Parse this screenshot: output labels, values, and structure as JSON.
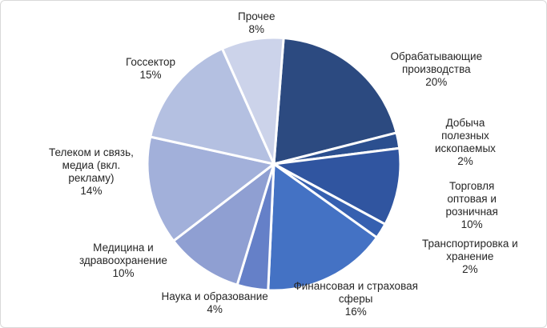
{
  "chart_data": {
    "type": "pie",
    "title": "",
    "start_angle_deg": 4.4,
    "slices": [
      {
        "label": "Обрабатывающие производства",
        "lines": [
          "Обрабатывающие",
          "производства"
        ],
        "value": 20,
        "value_label": "20%",
        "color": "#2c4a80"
      },
      {
        "label": "Добыча полезных ископаемых",
        "lines": [
          "Добыча",
          "полезных",
          "ископаемых"
        ],
        "value": 2,
        "value_label": "2%",
        "color": "#2b4f8f"
      },
      {
        "label": "Торговля оптовая и розничная",
        "lines": [
          "Торговля",
          "оптовая и",
          "розничная"
        ],
        "value": 10,
        "value_label": "10%",
        "color": "#3055a0"
      },
      {
        "label": "Транспортировка и хранение",
        "lines": [
          "Транспортировка и",
          "хранение"
        ],
        "value": 2,
        "value_label": "2%",
        "color": "#3660b0"
      },
      {
        "label": "Финансовая и страховая сферы",
        "lines": [
          "Финансовая и страховая",
          "сферы"
        ],
        "value": 16,
        "value_label": "16%",
        "color": "#4472c4"
      },
      {
        "label": "Наука и образование",
        "lines": [
          "Наука и образование"
        ],
        "value": 4,
        "value_label": "4%",
        "color": "#6580c8"
      },
      {
        "label": "Медицина и здравоохранение",
        "lines": [
          "Медицина и",
          "здравоохранение"
        ],
        "value": 10,
        "value_label": "10%",
        "color": "#8f9fd2"
      },
      {
        "label": "Телеком и связь, медиа (вкл. рекламу)",
        "lines": [
          "Телеком и связь,",
          "медиа (вкл.",
          "рекламу)"
        ],
        "value": 14,
        "value_label": "14%",
        "color": "#a2b0da"
      },
      {
        "label": "Госсектор",
        "lines": [
          "Госсектор"
        ],
        "value": 15,
        "value_label": "15%",
        "color": "#b4c0e1"
      },
      {
        "label": "Прочее",
        "lines": [
          "Прочее"
        ],
        "value": 8,
        "value_label": "8%",
        "color": "#ccd3ea"
      }
    ]
  }
}
